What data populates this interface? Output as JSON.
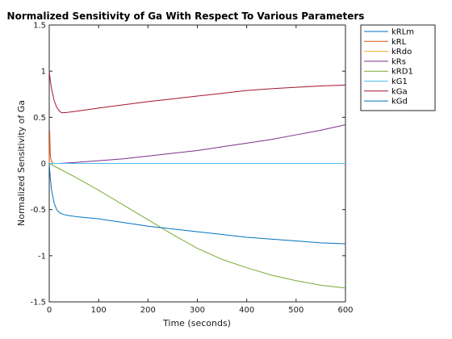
{
  "chart_data": {
    "type": "line",
    "title": "Normalized Sensitivity of Ga With Respect To Various Parameters",
    "xlabel": "Time (seconds)",
    "ylabel": "Normalized Sensitivity of Ga",
    "xlim": [
      0,
      600
    ],
    "ylim": [
      -1.5,
      1.5
    ],
    "xticks": [
      0,
      100,
      200,
      300,
      400,
      500,
      600
    ],
    "yticks": [
      -1.5,
      -1,
      -0.5,
      0,
      0.5,
      1,
      1.5
    ],
    "xtick_labels": [
      "0",
      "100",
      "200",
      "300",
      "400",
      "500",
      "600"
    ],
    "ytick_labels": [
      "-1.5",
      "-1",
      "-0.5",
      "0",
      "0.5",
      "1",
      "1.5"
    ],
    "grid": false,
    "legend_position": "outside-top-right",
    "series": [
      {
        "name": "kRLm",
        "color": "#0072bd",
        "x": [
          0,
          600
        ],
        "y": [
          0,
          0
        ]
      },
      {
        "name": "kRL",
        "color": "#d95319",
        "x": [
          0,
          1,
          2,
          3,
          5,
          8,
          600
        ],
        "y": [
          0,
          0.35,
          0.12,
          0.05,
          0.02,
          0.0,
          0
        ]
      },
      {
        "name": "kRdo",
        "color": "#edb120",
        "x": [
          0,
          600
        ],
        "y": [
          0,
          0
        ]
      },
      {
        "name": "kRs",
        "color": "#7e2f8e",
        "x": [
          0,
          20,
          50,
          100,
          150,
          200,
          250,
          300,
          350,
          400,
          450,
          500,
          550,
          600
        ],
        "y": [
          0,
          0.0,
          0.01,
          0.03,
          0.05,
          0.08,
          0.11,
          0.14,
          0.18,
          0.22,
          0.26,
          0.31,
          0.36,
          0.42
        ]
      },
      {
        "name": "kRD1",
        "color": "#77ac30",
        "x": [
          0,
          25,
          50,
          100,
          150,
          200,
          250,
          300,
          350,
          400,
          450,
          500,
          550,
          600
        ],
        "y": [
          0,
          -0.07,
          -0.14,
          -0.29,
          -0.45,
          -0.61,
          -0.77,
          -0.92,
          -1.04,
          -1.13,
          -1.21,
          -1.27,
          -1.32,
          -1.35
        ]
      },
      {
        "name": "kG1",
        "color": "#4dbeee",
        "x": [
          0,
          600
        ],
        "y": [
          0,
          0
        ]
      },
      {
        "name": "kGa",
        "color": "#a2142f",
        "x": [
          0,
          2,
          5,
          10,
          15,
          20,
          25,
          30,
          40,
          60,
          100,
          150,
          200,
          250,
          300,
          350,
          400,
          450,
          500,
          550,
          600
        ],
        "y": [
          1.0,
          0.9,
          0.8,
          0.68,
          0.61,
          0.57,
          0.55,
          0.55,
          0.555,
          0.57,
          0.6,
          0.635,
          0.67,
          0.7,
          0.73,
          0.76,
          0.79,
          0.81,
          0.825,
          0.84,
          0.85
        ]
      },
      {
        "name": "kGd",
        "color": "#0072bd",
        "x": [
          0,
          2,
          5,
          10,
          15,
          20,
          25,
          30,
          40,
          60,
          100,
          150,
          200,
          250,
          300,
          350,
          400,
          450,
          500,
          550,
          600
        ],
        "y": [
          0,
          -0.15,
          -0.3,
          -0.43,
          -0.5,
          -0.53,
          -0.545,
          -0.555,
          -0.565,
          -0.58,
          -0.6,
          -0.64,
          -0.68,
          -0.71,
          -0.74,
          -0.77,
          -0.8,
          -0.82,
          -0.84,
          -0.86,
          -0.87
        ]
      }
    ]
  }
}
